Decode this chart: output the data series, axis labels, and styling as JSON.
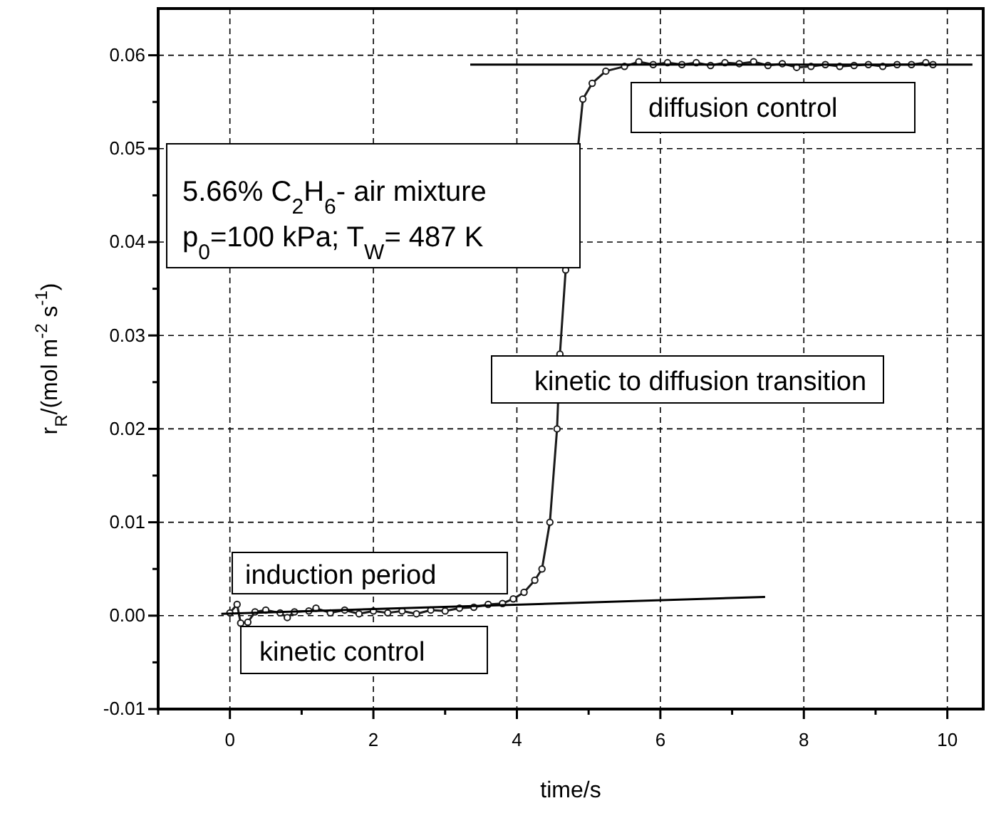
{
  "chart_data": {
    "type": "line",
    "xlabel": "time/s",
    "ylabel": "r$_{R}$/(mol m$^{-2}$ s$^{-1}$)",
    "xlim": [
      -1,
      10.5
    ],
    "ylim": [
      -0.01,
      0.065
    ],
    "xticks": [
      {
        "value": -1,
        "label": null
      },
      0,
      {
        "value": 1,
        "label": null
      },
      2,
      {
        "value": 3,
        "label": null
      },
      4,
      {
        "value": 5,
        "label": null
      },
      6,
      {
        "value": 7,
        "label": null
      },
      8,
      {
        "value": 9,
        "label": null
      },
      10
    ],
    "yticks": [
      -0.01,
      {
        "value": -0.005,
        "label": null
      },
      {
        "value": 0,
        "label": "0.00"
      },
      {
        "value": 0.005,
        "label": null
      },
      0.01,
      {
        "value": 0.015,
        "label": null
      },
      0.02,
      {
        "value": 0.025,
        "label": null
      },
      0.03,
      {
        "value": 0.035,
        "label": null
      },
      0.04,
      {
        "value": 0.045,
        "label": null
      },
      0.05,
      {
        "value": 0.055,
        "label": null
      },
      0.06
    ],
    "grid": true,
    "series": [
      {
        "color": "#1a1a1a",
        "marker": "circle",
        "x": [
          0.0,
          0.1,
          0.15,
          0.25,
          0.35,
          0.5,
          0.7,
          0.8,
          0.9,
          1.1,
          1.2,
          1.4,
          1.6,
          1.8,
          2.0,
          2.2,
          2.4,
          2.6,
          2.8,
          3.0,
          3.2,
          3.4,
          3.6,
          3.8,
          3.95,
          4.1,
          4.25,
          4.35,
          4.46,
          4.56,
          4.6,
          4.68,
          4.76,
          4.84,
          4.92,
          5.05,
          5.24,
          5.5,
          5.7,
          5.9,
          6.1,
          6.3,
          6.5,
          6.7,
          6.9,
          7.1,
          7.3,
          7.5,
          7.7,
          7.9,
          8.1,
          8.3,
          8.5,
          8.7,
          8.9,
          9.1,
          9.3,
          9.5,
          9.7,
          9.8
        ],
        "values": [
          0.0003,
          0.0012,
          -0.0008,
          -0.0007,
          0.0004,
          0.0006,
          0.0003,
          -0.0002,
          0.0004,
          0.0005,
          0.0008,
          0.0003,
          0.0006,
          0.0002,
          0.0005,
          0.0003,
          0.0005,
          0.0002,
          0.0006,
          0.0005,
          0.0008,
          0.0009,
          0.0012,
          0.0013,
          0.0018,
          0.0025,
          0.0038,
          0.005,
          0.01,
          0.02,
          0.028,
          0.037,
          null,
          null,
          0.0553,
          0.057,
          0.0583,
          0.0588,
          0.0593,
          0.059,
          0.0592,
          0.059,
          0.0592,
          0.0589,
          0.0592,
          0.0591,
          0.0593,
          0.0589,
          0.0591,
          0.0587,
          0.0588,
          0.059,
          0.0588,
          0.0589,
          0.059,
          0.0588,
          0.059,
          0.059,
          0.0592,
          0.059
        ]
      },
      {
        "color": "#000000",
        "marker": "none",
        "x": [
          3.35,
          10.35
        ],
        "values": [
          0.059,
          0.059
        ]
      },
      {
        "color": "#000000",
        "marker": "none",
        "x": [
          -0.12,
          7.46
        ],
        "values": [
          0.0002,
          0.002
        ]
      }
    ],
    "annotations": [
      "5.66% C$_{2}$H$_{6}$- air mixture",
      "p$_{0}$=100 kPa; T$_{W}$= 487 K",
      "diffusion control",
      "kinetic to diffusion transition",
      "induction period",
      "kinetic control"
    ]
  }
}
